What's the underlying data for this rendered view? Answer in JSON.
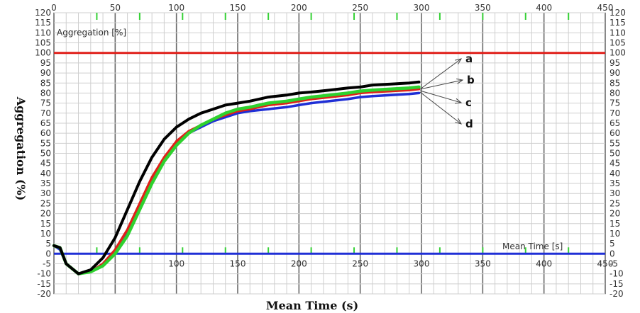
{
  "chart_data": {
    "type": "line",
    "inner_title": "Aggregation [%]",
    "inner_xlabel": "Mean Time [s]",
    "xlabel": "Mean Time (s)",
    "ylabel": "Aggregation (%)",
    "xlim": [
      0,
      450
    ],
    "ylim": [
      -20,
      120
    ],
    "x_ticks": [
      "0",
      "50",
      "100",
      "150",
      "200",
      "250",
      "300",
      "350",
      "400",
      "450"
    ],
    "x_ticks_bottom": [
      "100",
      "150",
      "200",
      "250",
      "300",
      "350",
      "400",
      "450"
    ],
    "y_ticks": [
      "120",
      "115",
      "110",
      "105",
      "100",
      "95",
      "90",
      "85",
      "80",
      "75",
      "70",
      "65",
      "60",
      "55",
      "50",
      "45",
      "40",
      "35",
      "30",
      "25",
      "20",
      "15",
      "10",
      "5",
      "0",
      "-5",
      "-10",
      "-15",
      "-20"
    ],
    "grid": true,
    "reference_lines": [
      {
        "y": 100,
        "color": "#e0201a"
      },
      {
        "y": 0,
        "color": "#1f2fd6"
      }
    ],
    "series": [
      {
        "name": "a",
        "color": "#000000",
        "x": [
          0,
          5,
          10,
          20,
          30,
          40,
          50,
          60,
          70,
          80,
          90,
          100,
          110,
          120,
          130,
          140,
          150,
          160,
          175,
          190,
          200,
          210,
          225,
          240,
          250,
          260,
          275,
          290,
          298
        ],
        "y": [
          4,
          3,
          -5,
          -10,
          -8,
          -2,
          8,
          22,
          36,
          48,
          57,
          63,
          67,
          70,
          72,
          74,
          75,
          76,
          78,
          79,
          80,
          80.5,
          81.5,
          82.5,
          83,
          84,
          84.5,
          85,
          85.5
        ]
      },
      {
        "name": "b",
        "color": "#e0201a",
        "x": [
          0,
          5,
          10,
          20,
          30,
          40,
          50,
          60,
          70,
          80,
          90,
          100,
          110,
          120,
          130,
          140,
          150,
          160,
          175,
          190,
          200,
          210,
          225,
          240,
          250,
          260,
          275,
          290,
          298
        ],
        "y": [
          4,
          3,
          -5,
          -10,
          -9,
          -5,
          2,
          12,
          25,
          38,
          48,
          56,
          61,
          64,
          67,
          69,
          71,
          72,
          74,
          75,
          76,
          77,
          78,
          79,
          80,
          80.5,
          81,
          81.5,
          82
        ]
      },
      {
        "name": "c",
        "color": "#2ed12e",
        "x": [
          0,
          5,
          10,
          20,
          30,
          40,
          50,
          60,
          70,
          80,
          90,
          100,
          110,
          120,
          130,
          140,
          150,
          160,
          175,
          190,
          200,
          210,
          225,
          240,
          250,
          260,
          275,
          290,
          298
        ],
        "y": [
          4,
          3,
          -5,
          -10,
          -9,
          -6,
          0,
          9,
          22,
          35,
          46,
          54,
          60,
          64,
          67,
          70,
          72,
          73,
          75,
          76,
          77,
          78,
          79,
          80,
          81,
          81.5,
          82,
          82.5,
          83
        ]
      },
      {
        "name": "d",
        "color": "#1f2fd6",
        "x": [
          0,
          5,
          10,
          20,
          30,
          40,
          50,
          60,
          70,
          80,
          90,
          100,
          110,
          120,
          130,
          140,
          150,
          160,
          175,
          190,
          200,
          210,
          225,
          240,
          250,
          260,
          275,
          290,
          298
        ],
        "y": [
          4,
          2,
          -5,
          -10,
          -9,
          -5,
          1,
          11,
          24,
          37,
          47,
          55,
          60,
          63,
          66,
          68,
          70,
          71,
          72,
          73,
          74,
          75,
          76,
          77,
          78,
          78.5,
          79,
          79.5,
          80
        ]
      }
    ]
  }
}
